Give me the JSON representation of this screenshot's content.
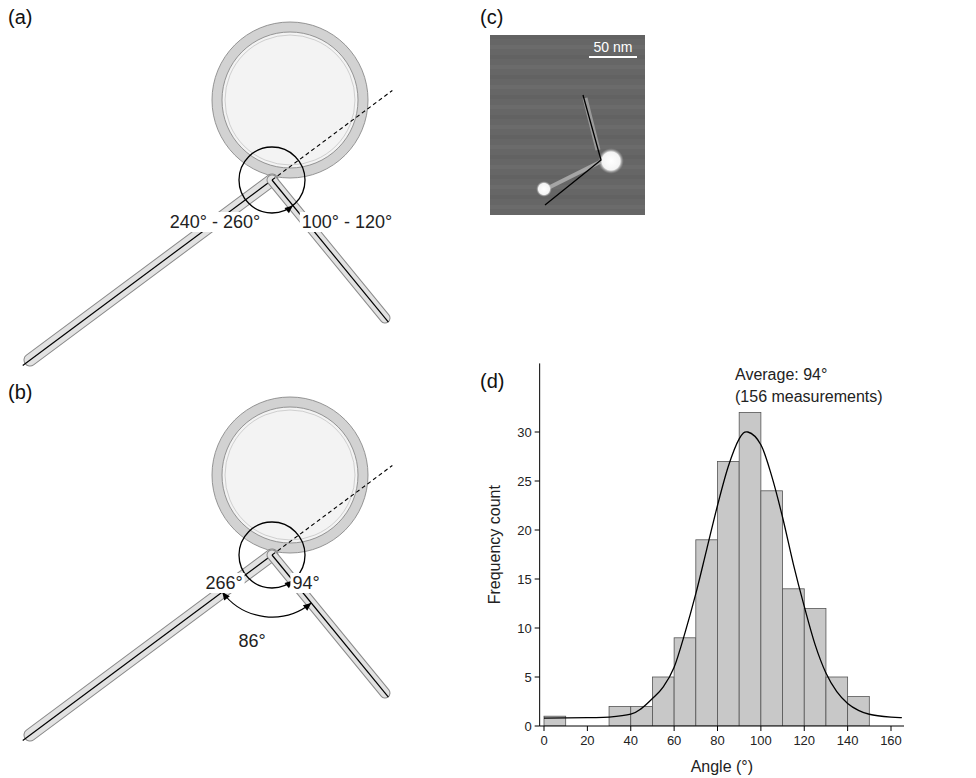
{
  "panels": {
    "a": {
      "panel_label": "(a)",
      "angle_labels": [
        "240° - 260°",
        "100° - 120°"
      ]
    },
    "b": {
      "panel_label": "(b)",
      "angle_labels": [
        "266°",
        "94°",
        "86°"
      ]
    },
    "c": {
      "panel_label": "(c)",
      "scale_bar": "50 nm"
    }
  },
  "chart_data": {
    "type": "histogram",
    "panel_label": "(d)",
    "x_label": "Angle (°)",
    "y_label": "Frequency count",
    "bins": [
      0,
      10,
      20,
      30,
      40,
      50,
      60,
      70,
      80,
      90,
      100,
      110,
      120,
      130,
      140,
      150
    ],
    "values": [
      1,
      0,
      0,
      2,
      2,
      5,
      9,
      19,
      27,
      32,
      24,
      14,
      12,
      5,
      3
    ],
    "color": "#c8c8c8",
    "xlim": [
      -2,
      166
    ],
    "ylim": [
      0,
      37
    ],
    "xticks": [
      0,
      20,
      40,
      60,
      80,
      100,
      120,
      140,
      160
    ],
    "yticks": [
      0,
      5,
      10,
      15,
      20,
      25,
      30
    ],
    "annotations": [
      "Average: 94°",
      "(156 measurements)"
    ],
    "fit": {
      "x": [
        0,
        20,
        30,
        40,
        45,
        50,
        55,
        60,
        65,
        70,
        75,
        80,
        85,
        90,
        94,
        100,
        105,
        110,
        115,
        120,
        125,
        130,
        135,
        140,
        145,
        150,
        160,
        165
      ],
      "values": [
        0.8,
        0.85,
        0.9,
        1.2,
        1.8,
        2.8,
        4.0,
        6.0,
        9.5,
        13.5,
        18.0,
        22.5,
        26.5,
        29.3,
        30.0,
        28.7,
        25.5,
        21.3,
        16.5,
        12.2,
        8.3,
        5.4,
        3.5,
        2.3,
        1.6,
        1.2,
        0.9,
        0.85
      ],
      "color": "#000000"
    }
  }
}
